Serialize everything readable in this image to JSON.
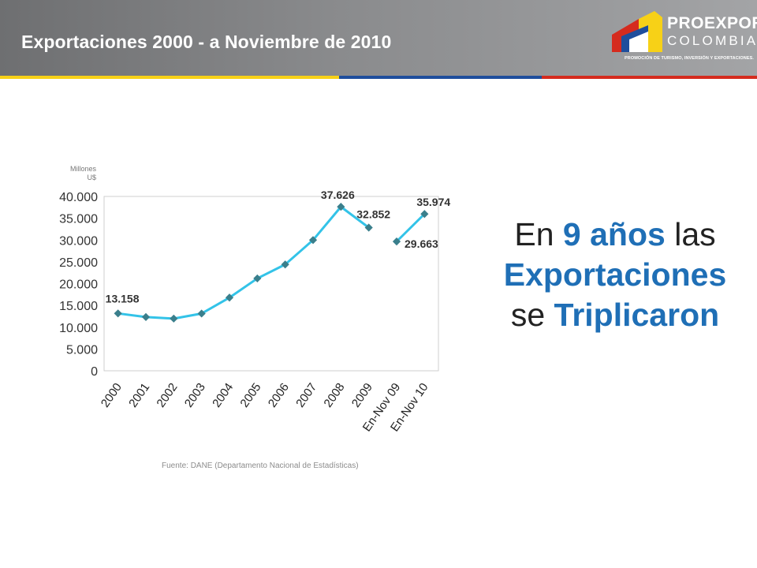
{
  "header": {
    "title": "Exportaciones 2000 - a Noviembre de 2010"
  },
  "logo": {
    "name": "PROEXPORT",
    "country": "COLOMBIA",
    "tagline": "PROMOCIÓN DE TURISMO, INVERSIÓN Y EXPORTACIONES."
  },
  "colors": {
    "header_gray": "#7d7e80",
    "stripe": [
      "#f7d117",
      "#1f4e9c",
      "#d52b1e"
    ],
    "line": "#33c3e8",
    "marker": "#3a7f8c",
    "accent_blue": "#1f6fb6"
  },
  "chart_data": {
    "type": "line",
    "unit_label": "Millones U$",
    "ylim": [
      0,
      40000
    ],
    "yticks": [
      "0",
      "5.000",
      "10.000",
      "15.000",
      "20.000",
      "25.000",
      "30.000",
      "35.000",
      "40.000"
    ],
    "categories": [
      "2000",
      "2001",
      "2002",
      "2003",
      "2004",
      "2005",
      "2006",
      "2007",
      "2008",
      "2009",
      "En-Nov 09",
      "En-Nov 10"
    ],
    "series": [
      {
        "values": [
          13158,
          12330,
          11975,
          13129,
          16788,
          21190,
          24391,
          29991,
          37626,
          32852,
          null,
          null
        ]
      },
      {
        "values": [
          null,
          null,
          null,
          null,
          null,
          null,
          null,
          null,
          null,
          null,
          29663,
          35974
        ]
      }
    ],
    "data_labels": [
      {
        "index": 0,
        "series": 0,
        "text": "13.158"
      },
      {
        "index": 8,
        "series": 0,
        "text": "37.626"
      },
      {
        "index": 9,
        "series": 0,
        "text": "32.852"
      },
      {
        "index": 10,
        "series": 1,
        "text": "29.663"
      },
      {
        "index": 11,
        "series": 1,
        "text": "35.974"
      }
    ],
    "grid": false,
    "legend": "none"
  },
  "source": "Fuente: DANE (Departamento Nacional de Estadísticas)",
  "statement": {
    "p1": "En ",
    "n": "9 años",
    "p2": " las",
    "word1": "Exportaciones",
    "p3": "se ",
    "word2": "Triplicaron"
  }
}
